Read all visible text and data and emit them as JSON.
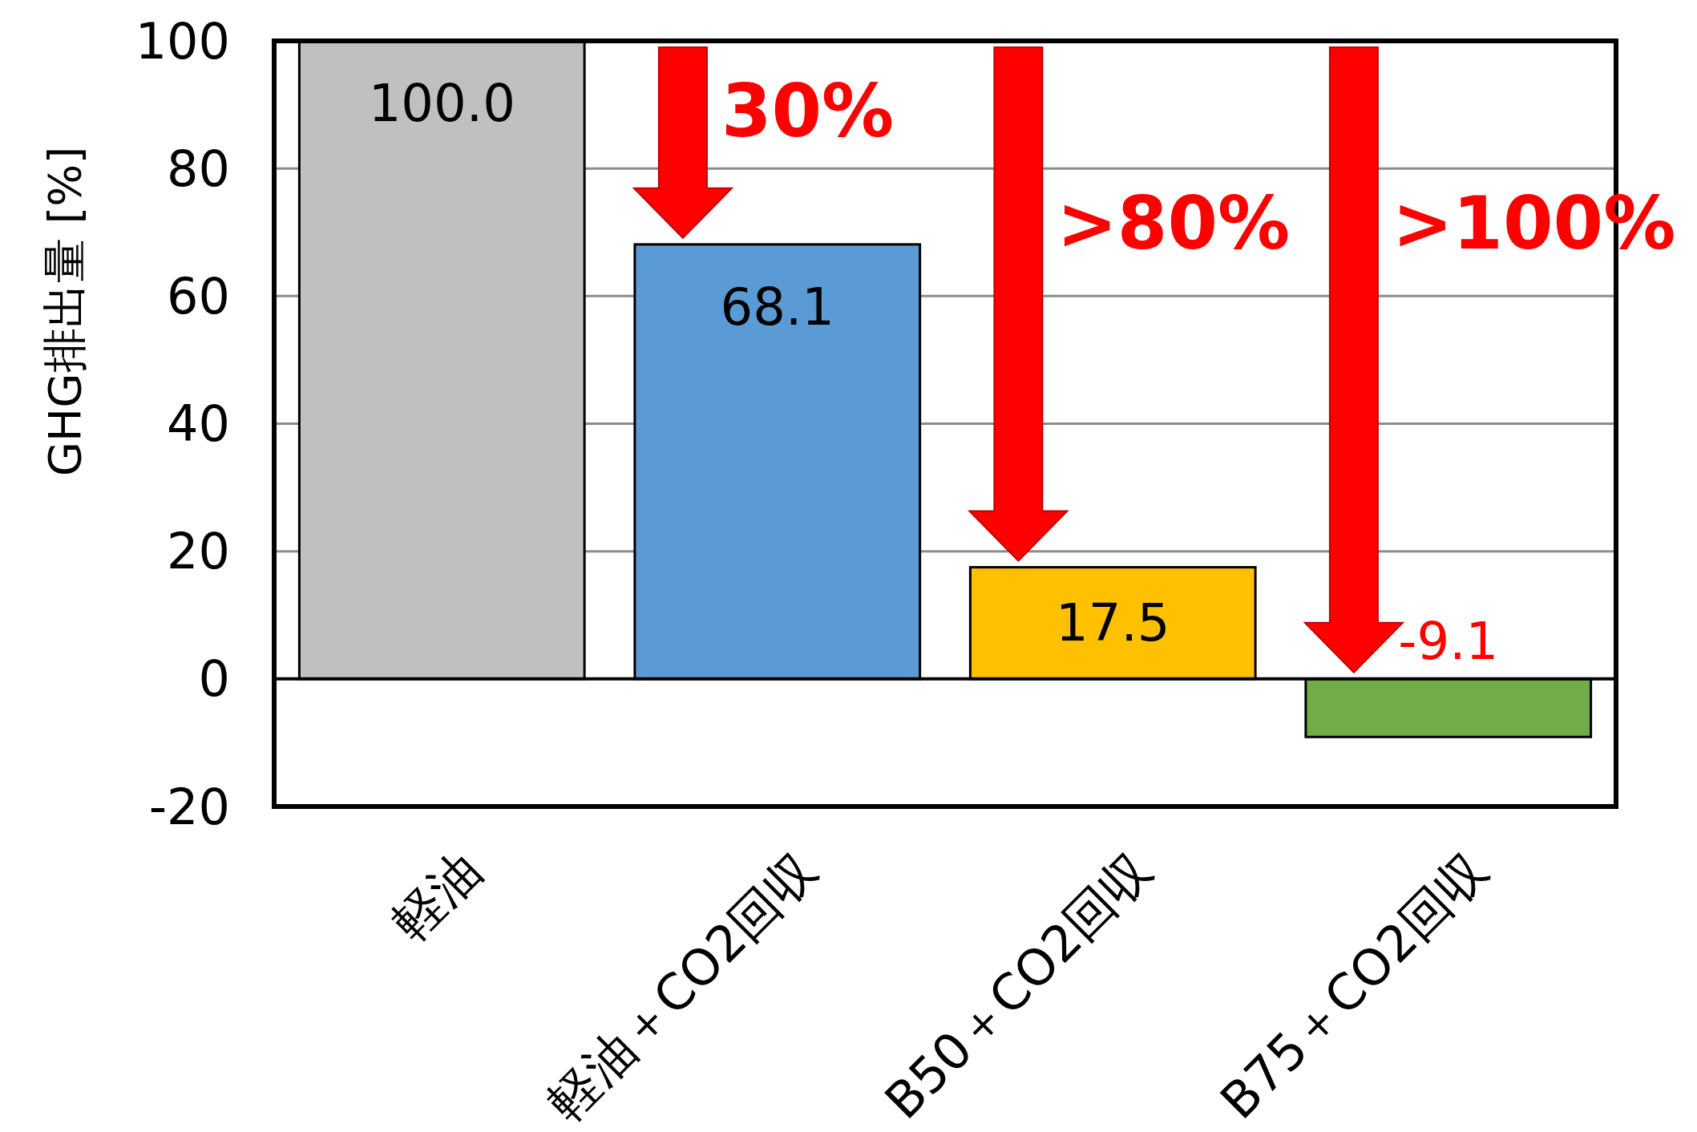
{
  "chart_data": {
    "type": "bar",
    "ylabel": "GHG排出量 [%]",
    "categories": [
      "軽油",
      "軽油＋CO2回収",
      "B50＋CO2回収",
      "B75＋CO2回収"
    ],
    "values": [
      100.0,
      68.1,
      17.5,
      -9.1
    ],
    "colors": [
      "#c0c0c0",
      "#5b9bd5",
      "#ffc000",
      "#70ad47"
    ],
    "value_labels": [
      "100.0",
      "68.1",
      "17.5",
      "-9.1"
    ],
    "ylim": [
      -20,
      100
    ],
    "yticks": [
      -20,
      0,
      20,
      40,
      60,
      80,
      100
    ],
    "grid": "y",
    "annotations": [
      "30%",
      ">80%",
      ">100%"
    ]
  }
}
